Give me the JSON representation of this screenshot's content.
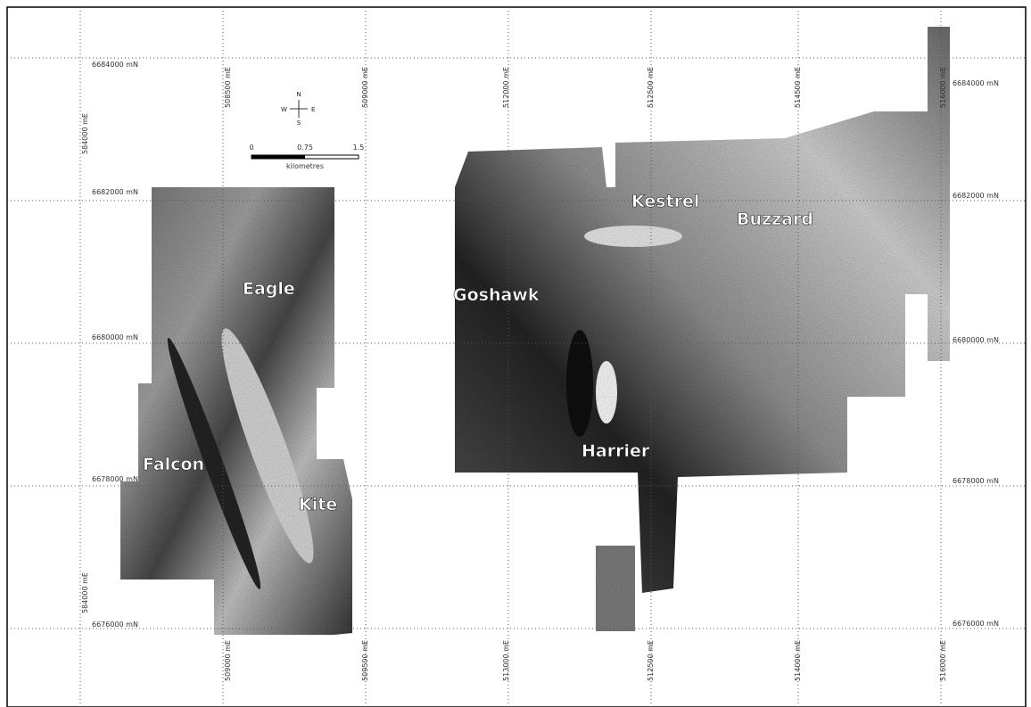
{
  "map": {
    "grid": {
      "left_labels": [
        "6684000 mN",
        "6682000 mN",
        "6680000 mN",
        "6678000 mN",
        "6676000 mN"
      ],
      "right_labels": [
        "6684000 mN",
        "6682000 mN",
        "6680000 mN",
        "6678000 mN",
        "6676000 mN"
      ],
      "top_labels": [
        "508500 mE",
        "509000 mE",
        "512000 mE",
        "512500 mE",
        "514500 mE",
        "516000 mE"
      ],
      "bottom_labels": [
        "509000 mE",
        "509500 mE",
        "513000 mE",
        "512500 mE",
        "514000 mE",
        "516000 mE"
      ],
      "side_labels": [
        "584000 mE",
        "584000 mE"
      ]
    },
    "north_arrow": {
      "n": "N",
      "s": "S",
      "e": "E",
      "w": "W"
    },
    "scale_bar": {
      "ticks": [
        "0",
        "0.75",
        "1.5"
      ],
      "unit": "kilometres"
    },
    "place_labels": [
      "Eagle",
      "Goshawk",
      "Kestrel",
      "Buzzard",
      "Falcon",
      "Kite",
      "Harrier"
    ]
  }
}
